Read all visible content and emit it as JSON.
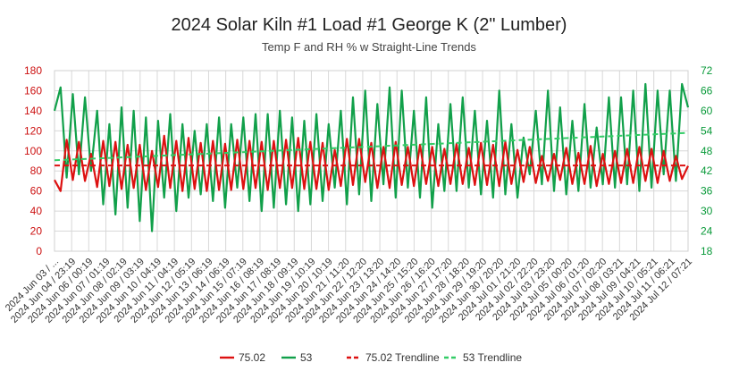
{
  "chart_data": {
    "type": "line",
    "title": "2024 Solar Kiln #1 Load #1 George K (2\" Lumber)",
    "subtitle": "Temp F and RH % w Straight-Line Trends",
    "y_left": {
      "ticks": [
        0,
        20,
        40,
        60,
        80,
        100,
        120,
        140,
        160,
        180
      ],
      "range": [
        0,
        180
      ],
      "color": "#cc1111"
    },
    "y_right": {
      "ticks": [
        18,
        24,
        30,
        36,
        42,
        48,
        54,
        60,
        66,
        72
      ],
      "range": [
        18,
        72
      ],
      "color": "#0a9a3a"
    },
    "grid": true,
    "legend_position": "bottom",
    "x_tick_labels": [
      "2024 Jun 03 / ...",
      "2024 Jun 04 / 23:19",
      "2024 Jun 06 / 00:19",
      "2024 Jun 07 / 01:19",
      "2024 Jun 08 / 02:19",
      "2024 Jun 09 / 03:19",
      "2024 Jun 10 / 04:19",
      "2024 Jun 11 / 04:19",
      "2024 Jun 12 / 05:19",
      "2024 Jun 13 / 06:19",
      "2024 Jun 14 / 06:19",
      "2024 Jun 15 / 07:19",
      "2024 Jun 16 / 08:19",
      "2024 Jun 17 / 08:19",
      "2024 Jun 18 / 09:19",
      "2024 Jun 19 / 10:19",
      "2024 Jun 20 / 10:19",
      "2024 Jun 21 / 11:20",
      "2024 Jun 22 / 12:20",
      "2024 Jun 23 / 13:20",
      "2024 Jun 24 / 14:20",
      "2024 Jun 25 / 15:20",
      "2024 Jun 26 / 16:20",
      "2024 Jun 27 / 17:20",
      "2024 Jun 28 / 18:20",
      "2024 Jun 29 / 19:20",
      "2024 Jun 30 / 20:20",
      "2024 Jul 01 / 21:20",
      "2024 Jul 02 / 22:20",
      "2024 Jul 03 / 23:20",
      "2024 Jul 05 / 00:20",
      "2024 Jul 06 / 01:20",
      "2024 Jul 07 / 02:20",
      "2024 Jul 08 / 03:21",
      "2024 Jul 09 / 04:21",
      "2024 Jul 10 / 05:21",
      "2024 Jul 11 / 06:21",
      "2024 Jul 12 / 07:21"
    ],
    "series": [
      {
        "name": "75.02",
        "axis": "left",
        "color": "#dd1111",
        "values": [
          71,
          60,
          111,
          71,
          109,
          70,
          97,
          64,
          110,
          65,
          109,
          62,
          106,
          63,
          106,
          61,
          100,
          64,
          115,
          63,
          110,
          60,
          113,
          62,
          108,
          60,
          110,
          61,
          107,
          61,
          111,
          62,
          110,
          63,
          109,
          61,
          110,
          63,
          111,
          63,
          113,
          62,
          109,
          62,
          108,
          61,
          101,
          65,
          112,
          66,
          112,
          69,
          108,
          63,
          104,
          63,
          109,
          66,
          104,
          65,
          106,
          67,
          104,
          65,
          102,
          67,
          107,
          67,
          103,
          66,
          108,
          66,
          106,
          65,
          109,
          67,
          101,
          69,
          104,
          68,
          95,
          70,
          97,
          71,
          103,
          67,
          98,
          67,
          105,
          65,
          97,
          67,
          100,
          68,
          102,
          68,
          104,
          70,
          102,
          68,
          100,
          70,
          95,
          72,
          85
        ]
      },
      {
        "name": "53",
        "axis": "right",
        "color": "#11a04a",
        "values": [
          60,
          67,
          40,
          65,
          41,
          64,
          42,
          60,
          32,
          56,
          29,
          61,
          31,
          60,
          27,
          58,
          24,
          57,
          34,
          59,
          30,
          56,
          34,
          54,
          35,
          56,
          33,
          58,
          31,
          56,
          37,
          58,
          33,
          59,
          30,
          59,
          31,
          60,
          32,
          58,
          30,
          57,
          32,
          59,
          33,
          56,
          37,
          60,
          32,
          64,
          35,
          66,
          33,
          62,
          38,
          67,
          34,
          66,
          37,
          60,
          34,
          64,
          31,
          56,
          36,
          62,
          36,
          64,
          37,
          60,
          35,
          57,
          34,
          66,
          35,
          56,
          34,
          52,
          41,
          60,
          38,
          66,
          36,
          61,
          35,
          57,
          36,
          62,
          37,
          55,
          38,
          64,
          37,
          64,
          38,
          66,
          36,
          68,
          37,
          66,
          41,
          66,
          39,
          68,
          61
        ]
      },
      {
        "name": "75.02 Trendline",
        "axis": "left",
        "color": "#dd1111",
        "dash": true,
        "values": [
          85.5,
          85.5
        ]
      },
      {
        "name": "53 Trendline",
        "axis": "right",
        "color": "#33cc66",
        "dash": true,
        "values": [
          45.2,
          53.4
        ]
      }
    ]
  }
}
